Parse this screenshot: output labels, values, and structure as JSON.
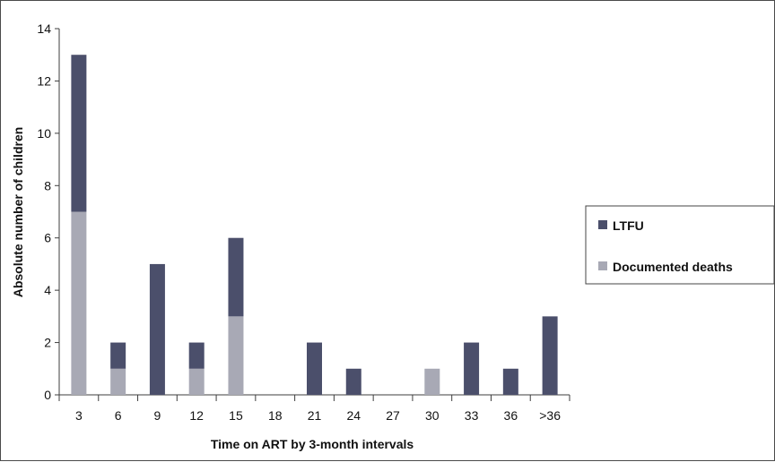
{
  "chart_data": {
    "type": "bar",
    "stacked": true,
    "title": "",
    "xlabel": "Time on ART by 3-month intervals",
    "ylabel": "Absolute number of children",
    "ylim": [
      0,
      14
    ],
    "yticks": [
      0,
      2,
      4,
      6,
      8,
      10,
      12,
      14
    ],
    "categories": [
      "3",
      "6",
      "9",
      "12",
      "15",
      "18",
      "21",
      "24",
      "27",
      "30",
      "33",
      "36",
      ">36"
    ],
    "series": [
      {
        "name": "Documented deaths",
        "values": [
          7,
          1,
          0,
          1,
          3,
          0,
          0,
          0,
          0,
          1,
          0,
          0,
          0
        ]
      },
      {
        "name": "LTFU",
        "values": [
          6,
          1,
          5,
          1,
          3,
          0,
          2,
          1,
          0,
          0,
          2,
          1,
          3
        ]
      }
    ],
    "grid": false,
    "legend_position": "right",
    "colors": {
      "LTFU": "#4b4f6b",
      "Documented deaths": "#a8a9b5",
      "axis": "#3d3d3d"
    }
  }
}
